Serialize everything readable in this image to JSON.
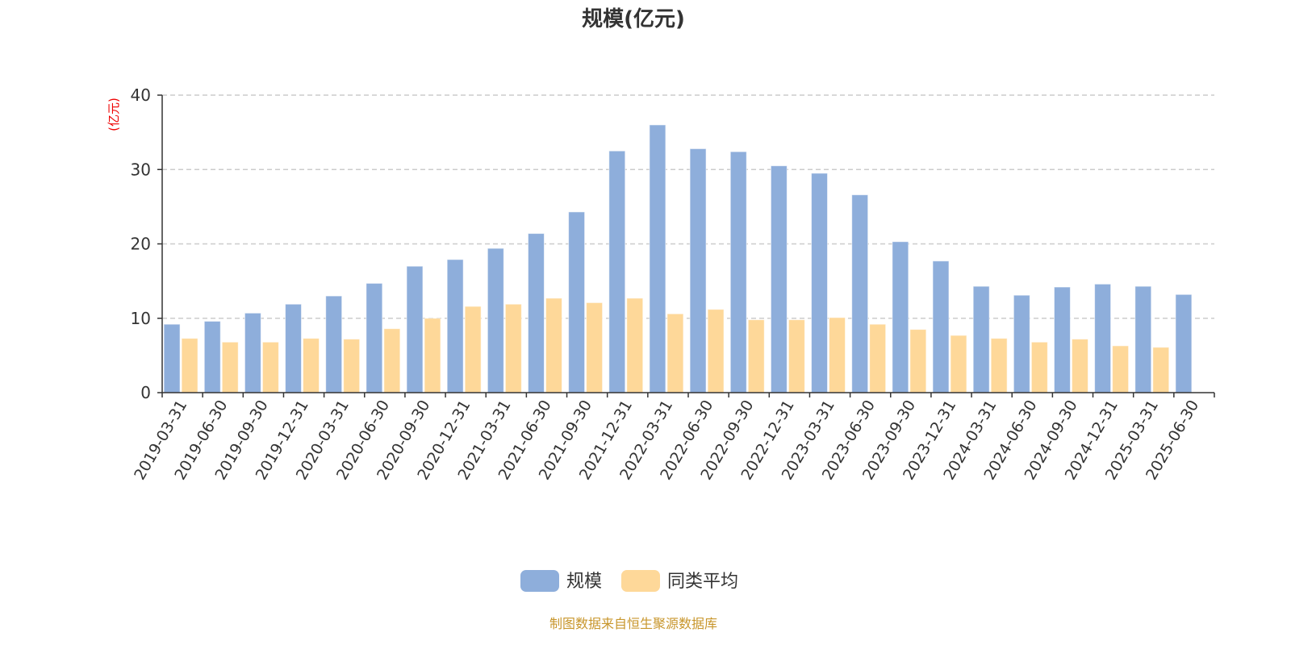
{
  "chart_data": {
    "type": "bar",
    "title": "规模(亿元)",
    "ylabel": "(亿元)",
    "xlabel": "",
    "ylim": [
      0,
      40
    ],
    "yticks": [
      0,
      10,
      20,
      30,
      40
    ],
    "grid": true,
    "legend_position": "bottom",
    "categories": [
      "2019-03-31",
      "2019-06-30",
      "2019-09-30",
      "2019-12-31",
      "2020-03-31",
      "2020-06-30",
      "2020-09-30",
      "2020-12-31",
      "2021-03-31",
      "2021-06-30",
      "2021-09-30",
      "2021-12-31",
      "2022-03-31",
      "2022-06-30",
      "2022-09-30",
      "2022-12-31",
      "2023-03-31",
      "2023-06-30",
      "2023-09-30",
      "2023-12-31",
      "2024-03-31",
      "2024-06-30",
      "2024-09-30",
      "2024-12-31",
      "2025-03-31",
      "2025-06-30"
    ],
    "series": [
      {
        "name": "规模",
        "color": "#8eaedb",
        "values": [
          9.2,
          9.6,
          10.7,
          11.9,
          13.0,
          14.7,
          17.0,
          17.9,
          19.4,
          21.4,
          24.3,
          32.5,
          36.0,
          32.8,
          32.4,
          30.5,
          29.5,
          26.6,
          20.3,
          17.7,
          14.3,
          13.1,
          14.2,
          14.6,
          14.3,
          13.2
        ]
      },
      {
        "name": "同类平均",
        "color": "#fed899",
        "values": [
          7.3,
          6.8,
          6.8,
          7.3,
          7.2,
          8.6,
          10.0,
          11.6,
          11.9,
          12.7,
          12.1,
          12.7,
          10.6,
          11.2,
          9.8,
          9.8,
          10.1,
          9.2,
          8.5,
          7.7,
          7.3,
          6.8,
          7.2,
          6.3,
          6.1,
          null
        ]
      }
    ]
  },
  "footer": "制图数据来自恒生聚源数据库"
}
